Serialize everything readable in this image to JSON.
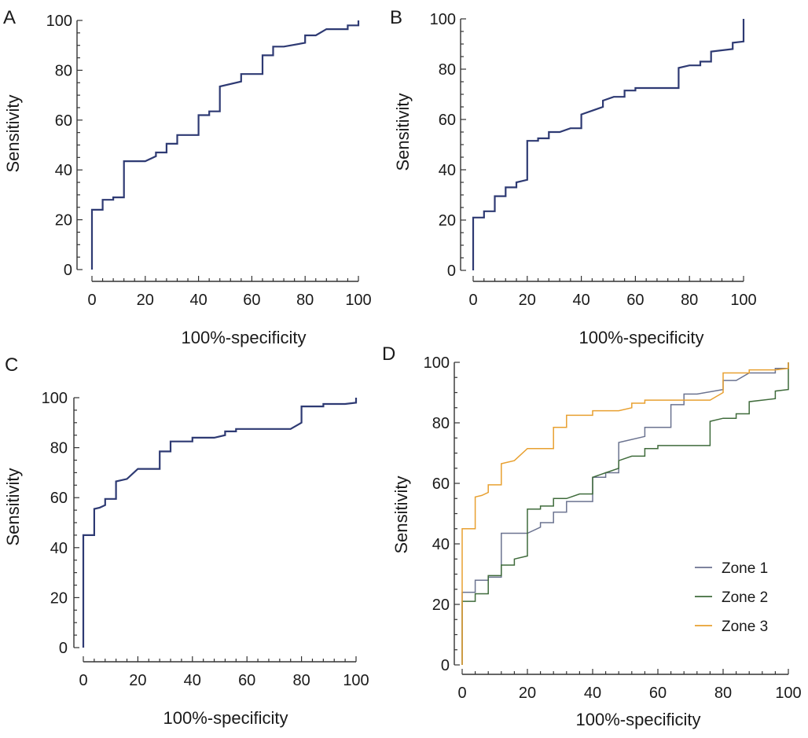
{
  "chart_data": [
    {
      "type": "line",
      "panel_label": "A",
      "xlabel": "100%-specificity",
      "ylabel": "Sensitivity",
      "xlim": [
        0,
        100
      ],
      "ylim": [
        0,
        100
      ],
      "xticks": [
        "0",
        "20",
        "40",
        "60",
        "80",
        "100"
      ],
      "yticks": [
        "0",
        "20",
        "40",
        "60",
        "80",
        "100"
      ],
      "series": [
        {
          "color": "#2e3a73",
          "points": [
            [
              0,
              0
            ],
            [
              0,
              24
            ],
            [
              4,
              24
            ],
            [
              4,
              28
            ],
            [
              8,
              28
            ],
            [
              8,
              29
            ],
            [
              12,
              29
            ],
            [
              12,
              43.5
            ],
            [
              20,
              43.5
            ],
            [
              24,
              45.5
            ],
            [
              24,
              47
            ],
            [
              28,
              47
            ],
            [
              28,
              50.5
            ],
            [
              32,
              50.5
            ],
            [
              32,
              54
            ],
            [
              40,
              54
            ],
            [
              40,
              62
            ],
            [
              44,
              62
            ],
            [
              44,
              63.5
            ],
            [
              48,
              63.5
            ],
            [
              48,
              73.5
            ],
            [
              56,
              75.5
            ],
            [
              56,
              78.5
            ],
            [
              64,
              78.5
            ],
            [
              64,
              86
            ],
            [
              68,
              86
            ],
            [
              68,
              89.5
            ],
            [
              72,
              89.5
            ],
            [
              80,
              91
            ],
            [
              80,
              94
            ],
            [
              84,
              94
            ],
            [
              88,
              96.5
            ],
            [
              96,
              96.5
            ],
            [
              96,
              98
            ],
            [
              100,
              98
            ],
            [
              100,
              100
            ]
          ]
        }
      ]
    },
    {
      "type": "line",
      "panel_label": "B",
      "xlabel": "100%-specificity",
      "ylabel": "Sensitivity",
      "xlim": [
        0,
        100
      ],
      "ylim": [
        0,
        100
      ],
      "xticks": [
        "0",
        "20",
        "40",
        "60",
        "80",
        "100"
      ],
      "yticks": [
        "0",
        "20",
        "40",
        "60",
        "80",
        "100"
      ],
      "series": [
        {
          "color": "#2e3a73",
          "points": [
            [
              0,
              0
            ],
            [
              0,
              21
            ],
            [
              4,
              21
            ],
            [
              4,
              23.5
            ],
            [
              8,
              23.5
            ],
            [
              8,
              29.5
            ],
            [
              12,
              29.5
            ],
            [
              12,
              33
            ],
            [
              16,
              33
            ],
            [
              16,
              35
            ],
            [
              20,
              36
            ],
            [
              20,
              51.5
            ],
            [
              24,
              51.5
            ],
            [
              24,
              52.5
            ],
            [
              28,
              52.5
            ],
            [
              28,
              55
            ],
            [
              32,
              55
            ],
            [
              36,
              56.5
            ],
            [
              40,
              56.5
            ],
            [
              40,
              62
            ],
            [
              44,
              63.5
            ],
            [
              48,
              65
            ],
            [
              48,
              67.5
            ],
            [
              52,
              69
            ],
            [
              56,
              69
            ],
            [
              56,
              71.5
            ],
            [
              60,
              71.5
            ],
            [
              60,
              72.5
            ],
            [
              76,
              72.5
            ],
            [
              76,
              80.5
            ],
            [
              80,
              81.5
            ],
            [
              84,
              81.5
            ],
            [
              84,
              83
            ],
            [
              88,
              83
            ],
            [
              88,
              87
            ],
            [
              96,
              88
            ],
            [
              96,
              90.5
            ],
            [
              100,
              91
            ],
            [
              100,
              100
            ]
          ]
        }
      ]
    },
    {
      "type": "line",
      "panel_label": "C",
      "xlabel": "100%-specificity",
      "ylabel": "Sensitivity",
      "xlim": [
        0,
        100
      ],
      "ylim": [
        0,
        100
      ],
      "xticks": [
        "0",
        "20",
        "40",
        "60",
        "80",
        "100"
      ],
      "yticks": [
        "0",
        "20",
        "40",
        "60",
        "80",
        "100"
      ],
      "series": [
        {
          "color": "#2e3a73",
          "points": [
            [
              0,
              0
            ],
            [
              0,
              45
            ],
            [
              4,
              45
            ],
            [
              4,
              55.5
            ],
            [
              6,
              56
            ],
            [
              8,
              57
            ],
            [
              8,
              59.5
            ],
            [
              12,
              59.5
            ],
            [
              12,
              66.5
            ],
            [
              16,
              67.5
            ],
            [
              20,
              71.5
            ],
            [
              28,
              71.5
            ],
            [
              28,
              78.5
            ],
            [
              32,
              78.5
            ],
            [
              32,
              82.5
            ],
            [
              40,
              82.5
            ],
            [
              40,
              84
            ],
            [
              48,
              84
            ],
            [
              52,
              85
            ],
            [
              52,
              86.5
            ],
            [
              56,
              86.5
            ],
            [
              56,
              87.5
            ],
            [
              76,
              87.5
            ],
            [
              80,
              90
            ],
            [
              80,
              96.5
            ],
            [
              88,
              96.5
            ],
            [
              88,
              97.5
            ],
            [
              96,
              97.5
            ],
            [
              100,
              98
            ],
            [
              100,
              100
            ]
          ]
        }
      ]
    },
    {
      "type": "line",
      "panel_label": "D",
      "xlabel": "100%-specificity",
      "ylabel": "Sensitivity",
      "xlim": [
        0,
        100
      ],
      "ylim": [
        0,
        100
      ],
      "xticks": [
        "0",
        "20",
        "40",
        "60",
        "80",
        "100"
      ],
      "yticks": [
        "0",
        "20",
        "40",
        "60",
        "80",
        "100"
      ],
      "legend_position": "bottom-right",
      "series": [
        {
          "name": "Zone 1",
          "color": "#6b7390",
          "points": [
            [
              0,
              0
            ],
            [
              0,
              24
            ],
            [
              4,
              24
            ],
            [
              4,
              28
            ],
            [
              8,
              28
            ],
            [
              8,
              29
            ],
            [
              12,
              29
            ],
            [
              12,
              43.5
            ],
            [
              20,
              43.5
            ],
            [
              24,
              45.5
            ],
            [
              24,
              47
            ],
            [
              28,
              47
            ],
            [
              28,
              50.5
            ],
            [
              32,
              50.5
            ],
            [
              32,
              54
            ],
            [
              40,
              54
            ],
            [
              40,
              62
            ],
            [
              44,
              62
            ],
            [
              44,
              63.5
            ],
            [
              48,
              63.5
            ],
            [
              48,
              73.5
            ],
            [
              56,
              75.5
            ],
            [
              56,
              78.5
            ],
            [
              64,
              78.5
            ],
            [
              64,
              86
            ],
            [
              68,
              86
            ],
            [
              68,
              89.5
            ],
            [
              72,
              89.5
            ],
            [
              80,
              91
            ],
            [
              80,
              94
            ],
            [
              84,
              94
            ],
            [
              88,
              96.5
            ],
            [
              96,
              96.5
            ],
            [
              96,
              98
            ],
            [
              100,
              98
            ],
            [
              100,
              100
            ]
          ]
        },
        {
          "name": "Zone 2",
          "color": "#3f6b3b",
          "points": [
            [
              0,
              0
            ],
            [
              0,
              21
            ],
            [
              4,
              21
            ],
            [
              4,
              23.5
            ],
            [
              8,
              23.5
            ],
            [
              8,
              29.5
            ],
            [
              12,
              29.5
            ],
            [
              12,
              33
            ],
            [
              16,
              33
            ],
            [
              16,
              35
            ],
            [
              20,
              36
            ],
            [
              20,
              51.5
            ],
            [
              24,
              51.5
            ],
            [
              24,
              52.5
            ],
            [
              28,
              52.5
            ],
            [
              28,
              55
            ],
            [
              32,
              55
            ],
            [
              36,
              56.5
            ],
            [
              40,
              56.5
            ],
            [
              40,
              62
            ],
            [
              44,
              63.5
            ],
            [
              48,
              65
            ],
            [
              48,
              67.5
            ],
            [
              52,
              69
            ],
            [
              56,
              69
            ],
            [
              56,
              71.5
            ],
            [
              60,
              71.5
            ],
            [
              60,
              72.5
            ],
            [
              76,
              72.5
            ],
            [
              76,
              80.5
            ],
            [
              80,
              81.5
            ],
            [
              84,
              81.5
            ],
            [
              84,
              83
            ],
            [
              88,
              83
            ],
            [
              88,
              87
            ],
            [
              96,
              88
            ],
            [
              96,
              90.5
            ],
            [
              100,
              91
            ],
            [
              100,
              100
            ]
          ]
        },
        {
          "name": "Zone 3",
          "color": "#e8a030",
          "points": [
            [
              0,
              0
            ],
            [
              0,
              45
            ],
            [
              4,
              45
            ],
            [
              4,
              55.5
            ],
            [
              6,
              56
            ],
            [
              8,
              57
            ],
            [
              8,
              59.5
            ],
            [
              12,
              59.5
            ],
            [
              12,
              66.5
            ],
            [
              16,
              67.5
            ],
            [
              20,
              71.5
            ],
            [
              28,
              71.5
            ],
            [
              28,
              78.5
            ],
            [
              32,
              78.5
            ],
            [
              32,
              82.5
            ],
            [
              40,
              82.5
            ],
            [
              40,
              84
            ],
            [
              48,
              84
            ],
            [
              52,
              85
            ],
            [
              52,
              86.5
            ],
            [
              56,
              86.5
            ],
            [
              56,
              87.5
            ],
            [
              76,
              87.5
            ],
            [
              80,
              90
            ],
            [
              80,
              96.5
            ],
            [
              88,
              96.5
            ],
            [
              88,
              97.5
            ],
            [
              96,
              97.5
            ],
            [
              100,
              98
            ],
            [
              100,
              100
            ]
          ]
        }
      ]
    }
  ]
}
